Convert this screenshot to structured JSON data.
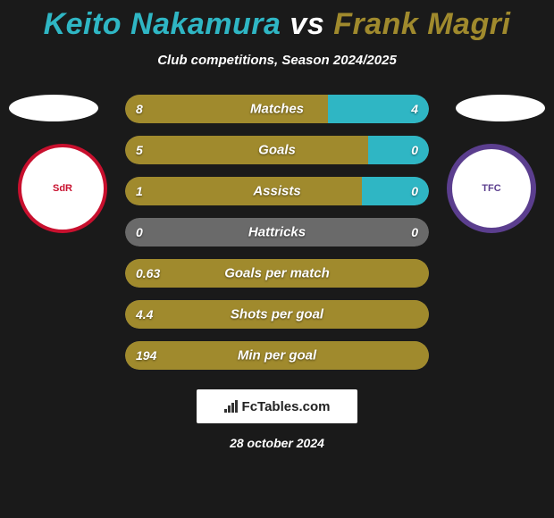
{
  "header": {
    "player1": "Keito Nakamura",
    "vs": "vs",
    "player2": "Frank Magri",
    "player1_color": "#2fb6c4",
    "player2_color": "#a08a2d",
    "subtitle": "Club competitions, Season 2024/2025"
  },
  "crests": {
    "left_label": "SdR",
    "right_label": "TFC"
  },
  "colors": {
    "bar_left": "#a08a2d",
    "bar_right": "#2fb6c4",
    "bar_track": "#6a6a6a",
    "background": "#1a1a1a"
  },
  "stats": [
    {
      "label": "Matches",
      "left_val": "8",
      "right_val": "4",
      "left_pct": 66.7,
      "right_pct": 33.3,
      "show_right": true
    },
    {
      "label": "Goals",
      "left_val": "5",
      "right_val": "0",
      "left_pct": 80.0,
      "right_pct": 20.0,
      "show_right": true
    },
    {
      "label": "Assists",
      "left_val": "1",
      "right_val": "0",
      "left_pct": 78.0,
      "right_pct": 22.0,
      "show_right": true
    },
    {
      "label": "Hattricks",
      "left_val": "0",
      "right_val": "0",
      "left_pct": 0.0,
      "right_pct": 0.0,
      "show_right": true
    },
    {
      "label": "Goals per match",
      "left_val": "0.63",
      "right_val": "",
      "left_pct": 100.0,
      "right_pct": 0.0,
      "show_right": false
    },
    {
      "label": "Shots per goal",
      "left_val": "4.4",
      "right_val": "",
      "left_pct": 100.0,
      "right_pct": 0.0,
      "show_right": false
    },
    {
      "label": "Min per goal",
      "left_val": "194",
      "right_val": "",
      "left_pct": 100.0,
      "right_pct": 0.0,
      "show_right": false
    }
  ],
  "footer": {
    "brand": "FcTables.com",
    "date": "28 october 2024"
  }
}
